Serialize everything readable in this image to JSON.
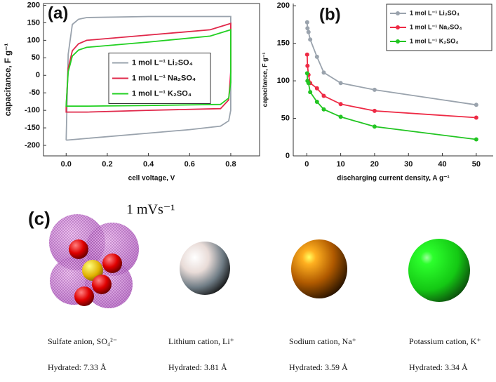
{
  "chart_data": [
    {
      "type": "line",
      "title": "(a)",
      "subtitle": "1 mVs⁻¹",
      "x_label": "cell voltage, V",
      "y_label": "capacitance, F g⁻¹",
      "xlim": [
        -0.11,
        0.94
      ],
      "ylim": [
        -230,
        205
      ],
      "xticks": [
        {
          "value": 0,
          "label": "0.0"
        },
        0.2,
        0.4,
        0.6,
        0.8
      ],
      "yticks": [
        -200,
        -150,
        -100,
        -50,
        0,
        50,
        100,
        150,
        200
      ],
      "legend": "center-right",
      "frame": true,
      "markers": false,
      "series": [
        {
          "name": "1 mol L⁻¹ Li₂SO₄",
          "color": "#9aa3ad",
          "x": [
            0,
            0.01,
            0.03,
            0.06,
            0.1,
            0.4,
            0.8,
            0.8,
            0.79,
            0.75,
            0.6,
            0.4,
            0.1,
            0,
            0
          ],
          "values": [
            -185,
            60,
            145,
            160,
            165,
            168,
            168,
            -100,
            -130,
            -145,
            -155,
            -165,
            -180,
            -185,
            -185
          ]
        },
        {
          "name": "1 mol L⁻¹ Na₂SO₄",
          "color": "#e0284a",
          "x": [
            0,
            0.01,
            0.03,
            0.06,
            0.1,
            0.4,
            0.7,
            0.8,
            0.8,
            0.79,
            0.75,
            0.4,
            0.1,
            0,
            0
          ],
          "values": [
            -90,
            20,
            70,
            90,
            100,
            115,
            130,
            148,
            10,
            -70,
            -95,
            -100,
            -105,
            -105,
            -90
          ]
        },
        {
          "name": "1 mol L⁻¹ K₂SO₄",
          "color": "#22d022",
          "x": [
            0,
            0.01,
            0.03,
            0.06,
            0.1,
            0.4,
            0.7,
            0.8,
            0.8,
            0.79,
            0.75,
            0.4,
            0.1,
            0,
            0
          ],
          "values": [
            -85,
            10,
            55,
            72,
            80,
            95,
            112,
            130,
            -20,
            -65,
            -83,
            -86,
            -88,
            -88,
            -85
          ]
        }
      ]
    },
    {
      "type": "line",
      "title": "(b)",
      "x_label": "discharging current density, A g⁻¹",
      "y_label": "capacitance, F g⁻¹",
      "xlim": [
        -4,
        55
      ],
      "ylim": [
        0,
        203
      ],
      "xticks": [
        0,
        10,
        20,
        30,
        40,
        50
      ],
      "yticks": [
        0,
        50,
        100,
        150,
        200
      ],
      "legend": "upper-right",
      "frame": false,
      "markers": true,
      "x": [
        0.1,
        0.2,
        0.5,
        1,
        3,
        5,
        10,
        20,
        50
      ],
      "series": [
        {
          "name": "1 mol L⁻¹ Li₂SO₄",
          "color": "#9aa3ad",
          "values": [
            178,
            170,
            165,
            155,
            132,
            111,
            97,
            88,
            68
          ]
        },
        {
          "name": "1 mol L⁻¹ Na₂SO₄",
          "color": "#ee2a45",
          "values": [
            135,
            120,
            108,
            97,
            90,
            80,
            69,
            60,
            51
          ]
        },
        {
          "name": "1 mol L⁻¹ K₂SO₄",
          "color": "#22c522",
          "values": [
            110,
            100,
            97,
            85,
            72,
            62,
            52,
            39,
            22
          ]
        }
      ]
    }
  ],
  "panel_c": {
    "label": "(c)",
    "items": [
      {
        "name": "Sulfate anion, SO₄²⁻",
        "size": "Hydrated: 7.33 Å"
      },
      {
        "name": "Lithium cation, Li⁺",
        "size": "Hydrated: 3.81 Å"
      },
      {
        "name": "Sodium cation, Na⁺",
        "size": "Hydrated: 3.59 Å"
      },
      {
        "name": "Potassium cation, K⁺",
        "size": "Hydrated: 3.34 Å"
      }
    ]
  }
}
